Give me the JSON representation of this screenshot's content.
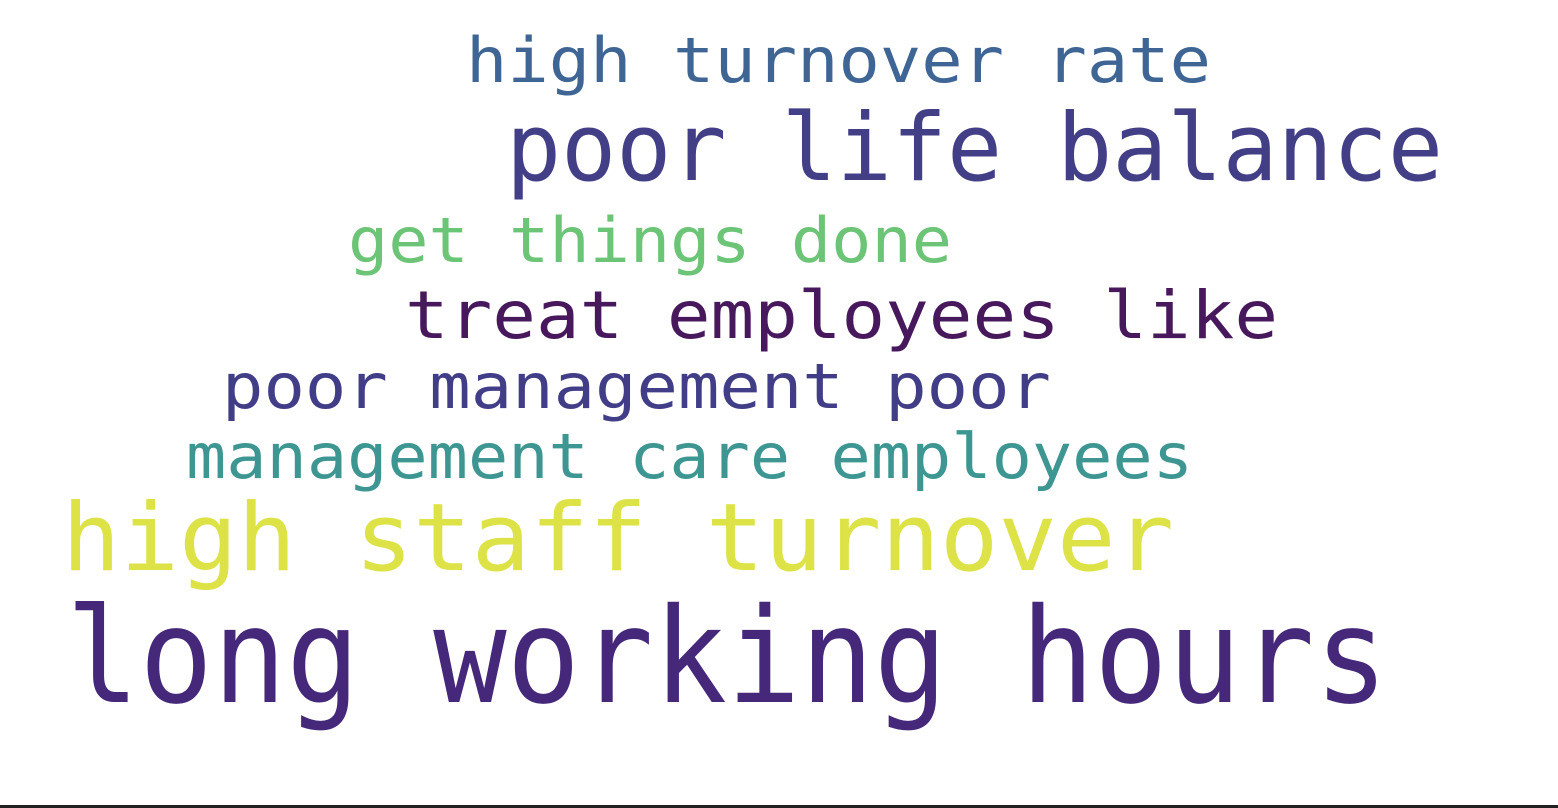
{
  "words": [
    {
      "text": "high turnover rate",
      "color": "#3e6594"
    },
    {
      "text": "poor life balance",
      "color": "#433f87"
    },
    {
      "text": "get things done",
      "color": "#6cc476"
    },
    {
      "text": "treat employees like",
      "color": "#47185c"
    },
    {
      "text": "poor management poor",
      "color": "#413e87"
    },
    {
      "text": "management care employees",
      "color": "#3d9691"
    },
    {
      "text": "high staff turnover",
      "color": "#dde346"
    },
    {
      "text": "long working hours",
      "color": "#45287a"
    }
  ]
}
